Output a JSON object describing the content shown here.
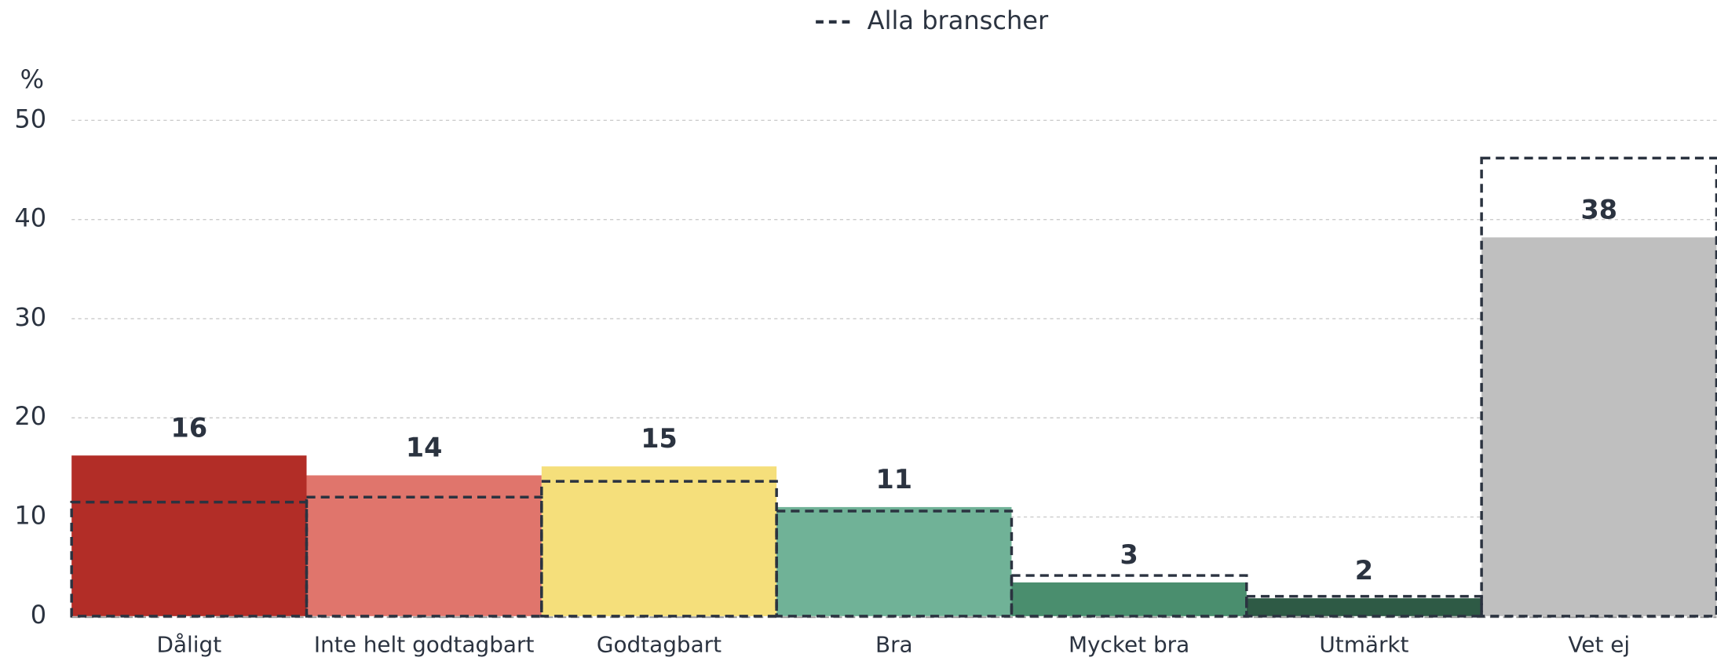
{
  "chart_data": {
    "type": "bar",
    "y_label": "%",
    "categories": [
      "Dåligt",
      "Inte helt godtagbart",
      "Godtagbart",
      "Bra",
      "Mycket bra",
      "Utmärkt",
      "Vet ej"
    ],
    "series": [
      {
        "colors": [
          "#b22d27",
          "#e0756c",
          "#f5df7b",
          "#70b297",
          "#4a8e6e",
          "#2e5a45",
          "#bfbfbf"
        ],
        "values": [
          16.2,
          14.2,
          15.1,
          11.0,
          3.4,
          1.8,
          38.2
        ],
        "value_labels": [
          "16",
          "14",
          "15",
          "11",
          "3",
          "2",
          "38"
        ]
      },
      {
        "name": "Alla branscher",
        "color": "#2b3340",
        "style": "dashed",
        "values": [
          11.5,
          12.0,
          13.6,
          10.6,
          4.1,
          2.0,
          46.2
        ]
      }
    ],
    "ylim": [
      0,
      50
    ],
    "yticks": [
      0,
      10,
      20,
      30,
      40,
      50
    ],
    "grid": true,
    "legend": "top"
  }
}
